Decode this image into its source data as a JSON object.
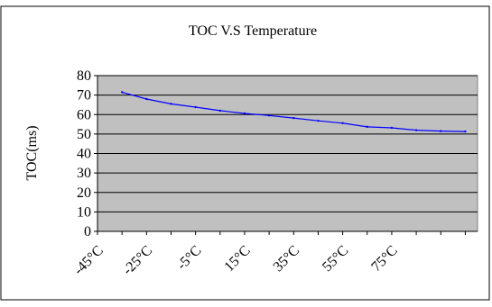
{
  "chart_data": {
    "type": "line",
    "title": "TOC V.S Temperature",
    "xlabel": "",
    "ylabel": "TOC(ms)",
    "ylim": [
      0,
      80
    ],
    "yticks": [
      "0",
      "10",
      "20",
      "30",
      "40",
      "50",
      "60",
      "70",
      "80"
    ],
    "xticks": [
      "-45°C",
      "-25°C",
      "-5°C",
      "15°C",
      "35°C",
      "55°C",
      "75°C"
    ],
    "grid": true,
    "legend": "none",
    "plot_background": "#c0c0c0",
    "line_color": "#0000ff",
    "series": [
      {
        "x": [
          -40,
          -30,
          -20,
          -10,
          0,
          10,
          20,
          30,
          40,
          50,
          60,
          70,
          80,
          90,
          100
        ],
        "values": [
          71.5,
          68.0,
          65.5,
          63.8,
          62.0,
          60.6,
          59.5,
          58.2,
          56.8,
          55.6,
          53.7,
          53.2,
          52.0,
          51.5,
          51.3
        ]
      }
    ]
  }
}
